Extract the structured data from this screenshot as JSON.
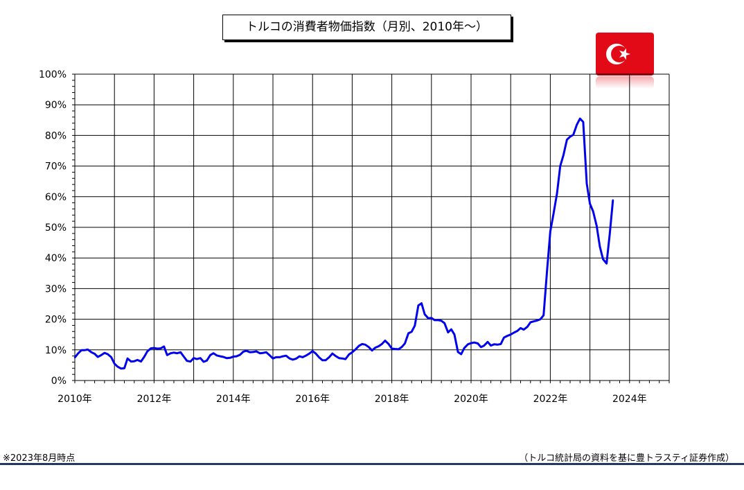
{
  "chart_data": {
    "type": "line",
    "title": "トルコの消費者物価指数（月別、2010年～）",
    "xlabel": "",
    "ylabel": "",
    "x_ticks": [
      "2010年",
      "2012年",
      "2014年",
      "2016年",
      "2018年",
      "2020年",
      "2022年",
      "2024年"
    ],
    "y_ticks": [
      "0%",
      "10%",
      "20%",
      "30%",
      "40%",
      "50%",
      "60%",
      "70%",
      "80%",
      "90%",
      "100%"
    ],
    "xlim": [
      2010.0,
      2025.0
    ],
    "ylim": [
      0,
      100
    ],
    "grid": true,
    "line_color": "#0000ee",
    "series": [
      {
        "x": [
          2010.0,
          2010.08,
          2010.17,
          2010.25,
          2010.33,
          2010.42,
          2010.5,
          2010.58,
          2010.67,
          2010.75,
          2010.83,
          2010.92,
          2011.0,
          2011.08,
          2011.17,
          2011.25,
          2011.33,
          2011.42,
          2011.5,
          2011.58,
          2011.67,
          2011.75,
          2011.83,
          2011.92,
          2012.0,
          2012.08,
          2012.17,
          2012.25,
          2012.33,
          2012.42,
          2012.5,
          2012.58,
          2012.67,
          2012.75,
          2012.83,
          2012.92,
          2013.0,
          2013.08,
          2013.17,
          2013.25,
          2013.33,
          2013.42,
          2013.5,
          2013.58,
          2013.67,
          2013.75,
          2013.83,
          2013.92,
          2014.0,
          2014.08,
          2014.17,
          2014.25,
          2014.33,
          2014.42,
          2014.5,
          2014.58,
          2014.67,
          2014.75,
          2014.83,
          2014.92,
          2015.0,
          2015.08,
          2015.17,
          2015.25,
          2015.33,
          2015.42,
          2015.5,
          2015.58,
          2015.67,
          2015.75,
          2015.83,
          2015.92,
          2016.0,
          2016.08,
          2016.17,
          2016.25,
          2016.33,
          2016.42,
          2016.5,
          2016.58,
          2016.67,
          2016.75,
          2016.83,
          2016.92,
          2017.0,
          2017.08,
          2017.17,
          2017.25,
          2017.33,
          2017.42,
          2017.5,
          2017.58,
          2017.67,
          2017.75,
          2017.83,
          2017.92,
          2018.0,
          2018.08,
          2018.17,
          2018.25,
          2018.33,
          2018.42,
          2018.5,
          2018.58,
          2018.67,
          2018.75,
          2018.83,
          2018.92,
          2019.0,
          2019.08,
          2019.17,
          2019.25,
          2019.33,
          2019.42,
          2019.5,
          2019.58,
          2019.67,
          2019.75,
          2019.83,
          2019.92,
          2020.0,
          2020.08,
          2020.17,
          2020.25,
          2020.33,
          2020.42,
          2020.5,
          2020.58,
          2020.67,
          2020.75,
          2020.83,
          2020.92,
          2021.0,
          2021.08,
          2021.17,
          2021.25,
          2021.33,
          2021.42,
          2021.5,
          2021.58,
          2021.67,
          2021.75,
          2021.83,
          2021.92,
          2022.0,
          2022.08,
          2022.17,
          2022.25,
          2022.33,
          2022.42,
          2022.5,
          2022.58,
          2022.67,
          2022.75,
          2022.83,
          2022.92,
          2023.0,
          2023.08,
          2023.17,
          2023.25,
          2023.33,
          2023.42,
          2023.5,
          2023.58
        ],
        "values": [
          7.5,
          8.8,
          9.9,
          9.9,
          10.1,
          9.2,
          8.7,
          7.7,
          8.3,
          9.0,
          8.6,
          7.6,
          5.5,
          4.5,
          3.9,
          4.0,
          7.2,
          6.2,
          6.3,
          6.7,
          6.2,
          7.7,
          9.5,
          10.5,
          10.6,
          10.4,
          10.5,
          11.1,
          8.3,
          8.9,
          9.1,
          8.9,
          9.2,
          7.8,
          6.4,
          6.2,
          7.3,
          7.0,
          7.3,
          6.1,
          6.5,
          8.3,
          8.9,
          8.2,
          7.9,
          7.7,
          7.3,
          7.4,
          7.8,
          7.9,
          8.4,
          9.4,
          9.7,
          9.2,
          9.3,
          9.5,
          8.9,
          9.0,
          9.2,
          8.2,
          7.2,
          7.6,
          7.6,
          7.9,
          8.1,
          7.2,
          6.8,
          7.1,
          7.9,
          7.6,
          8.1,
          8.8,
          9.6,
          8.8,
          7.5,
          6.6,
          6.6,
          7.6,
          8.8,
          8.0,
          7.3,
          7.2,
          7.0,
          8.5,
          9.2,
          10.1,
          11.3,
          11.9,
          11.7,
          10.9,
          9.8,
          10.7,
          11.2,
          11.9,
          13.0,
          11.9,
          10.4,
          10.3,
          10.2,
          10.9,
          12.1,
          15.4,
          15.9,
          17.9,
          24.5,
          25.2,
          21.6,
          20.3,
          20.4,
          19.7,
          19.7,
          19.5,
          18.7,
          15.7,
          16.7,
          15.0,
          9.3,
          8.6,
          10.6,
          11.8,
          12.2,
          12.4,
          12.1,
          10.9,
          11.4,
          12.6,
          11.4,
          11.8,
          11.7,
          11.9,
          14.0,
          14.6,
          15.0,
          15.6,
          16.2,
          17.1,
          16.6,
          17.5,
          19.0,
          19.3,
          19.6,
          20.0,
          21.3,
          36.1,
          48.7,
          54.4,
          61.1,
          69.97,
          73.5,
          78.6,
          79.6,
          80.2,
          83.5,
          85.5,
          84.4,
          64.3,
          57.7,
          55.2,
          50.5,
          43.7,
          39.6,
          38.2,
          47.8,
          58.9
        ]
      }
    ]
  },
  "flag": {
    "country": "turkey-flag-icon",
    "background": "#e30a17",
    "symbol": "#ffffff"
  },
  "footer": {
    "note": "※2023年8月時点",
    "source": "（トルコ統計局の資料を基に豊トラスティ証券作成）"
  }
}
